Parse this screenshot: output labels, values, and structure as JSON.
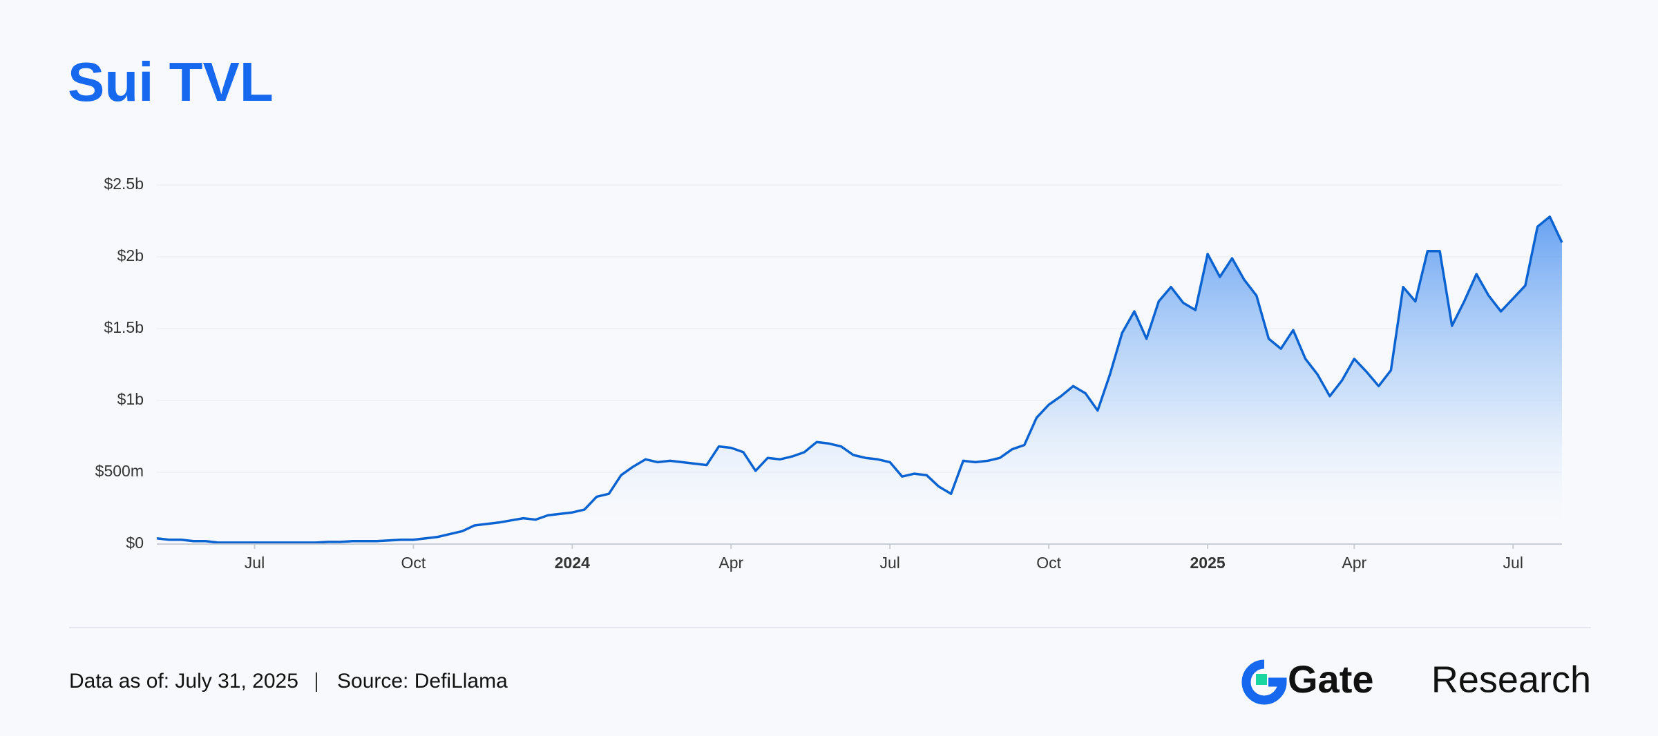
{
  "chart_data": {
    "type": "area",
    "title": "Sui TVL",
    "color": "#0b63d1",
    "grid": true,
    "categories": [
      null,
      null,
      null,
      null,
      null,
      null,
      null,
      null,
      "Jul",
      null,
      null,
      null,
      null,
      null,
      null,
      null,
      null,
      null,
      null,
      null,
      null,
      "Oct",
      null,
      null,
      null,
      null,
      null,
      null,
      null,
      null,
      null,
      null,
      null,
      null,
      "2024",
      null,
      null,
      null,
      null,
      null,
      null,
      null,
      null,
      null,
      null,
      null,
      null,
      "Apr",
      null,
      null,
      null,
      null,
      null,
      null,
      null,
      null,
      null,
      null,
      null,
      null,
      "Jul",
      null,
      null,
      null,
      null,
      null,
      null,
      null,
      null,
      null,
      null,
      null,
      null,
      "Oct",
      null,
      null,
      null,
      null,
      null,
      null,
      null,
      null,
      null,
      null,
      null,
      null,
      "2025",
      null,
      null,
      null,
      null,
      null,
      null,
      null,
      null,
      null,
      null,
      null,
      "Apr",
      null,
      null,
      null,
      null,
      null,
      null,
      null,
      null,
      null,
      null,
      null,
      null,
      "Jul",
      null,
      null,
      null,
      null
    ],
    "values": [
      40000000,
      30000000,
      30000000,
      20000000,
      20000000,
      10000000,
      10000000,
      10000000,
      10000000,
      10000000,
      10000000,
      10000000,
      10000000,
      10000000,
      15000000,
      15000000,
      20000000,
      20000000,
      20000000,
      25000000,
      30000000,
      30000000,
      40000000,
      50000000,
      70000000,
      90000000,
      130000000,
      140000000,
      150000000,
      165000000,
      180000000,
      170000000,
      200000000,
      210000000,
      220000000,
      240000000,
      330000000,
      350000000,
      480000000,
      540000000,
      590000000,
      570000000,
      580000000,
      570000000,
      560000000,
      550000000,
      680000000,
      670000000,
      640000000,
      510000000,
      600000000,
      590000000,
      610000000,
      640000000,
      710000000,
      700000000,
      680000000,
      620000000,
      600000000,
      590000000,
      570000000,
      470000000,
      490000000,
      480000000,
      400000000,
      350000000,
      580000000,
      570000000,
      580000000,
      600000000,
      660000000,
      690000000,
      880000000,
      970000000,
      1030000000,
      1100000000,
      1050000000,
      930000000,
      1180000000,
      1470000000,
      1620000000,
      1430000000,
      1690000000,
      1790000000,
      1680000000,
      1630000000,
      2020000000,
      1860000000,
      1990000000,
      1840000000,
      1730000000,
      1430000000,
      1360000000,
      1490000000,
      1290000000,
      1180000000,
      1030000000,
      1140000000,
      1290000000,
      1200000000,
      1100000000,
      1210000000,
      1790000000,
      1690000000,
      2040000000,
      2040000000,
      1520000000,
      1690000000,
      1880000000,
      1730000000,
      1620000000,
      1710000000,
      1800000000,
      2210000000,
      2280000000,
      2100000000
    ],
    "ylim": [
      0,
      2500000000
    ],
    "yticks": [
      {
        "value": 0,
        "label": "$0"
      },
      {
        "value": 500000000,
        "label": "$500m"
      },
      {
        "value": 1000000000,
        "label": "$1b"
      },
      {
        "value": 1500000000,
        "label": "$1.5b"
      },
      {
        "value": 2000000000,
        "label": "$2b"
      },
      {
        "value": 2500000000,
        "label": "$2.5b"
      }
    ]
  },
  "footer": {
    "date": "Data as of: July 31, 2025",
    "source": "Source: DefiLlama"
  },
  "logo": {
    "brand": "Gate",
    "suffix": "Research"
  }
}
